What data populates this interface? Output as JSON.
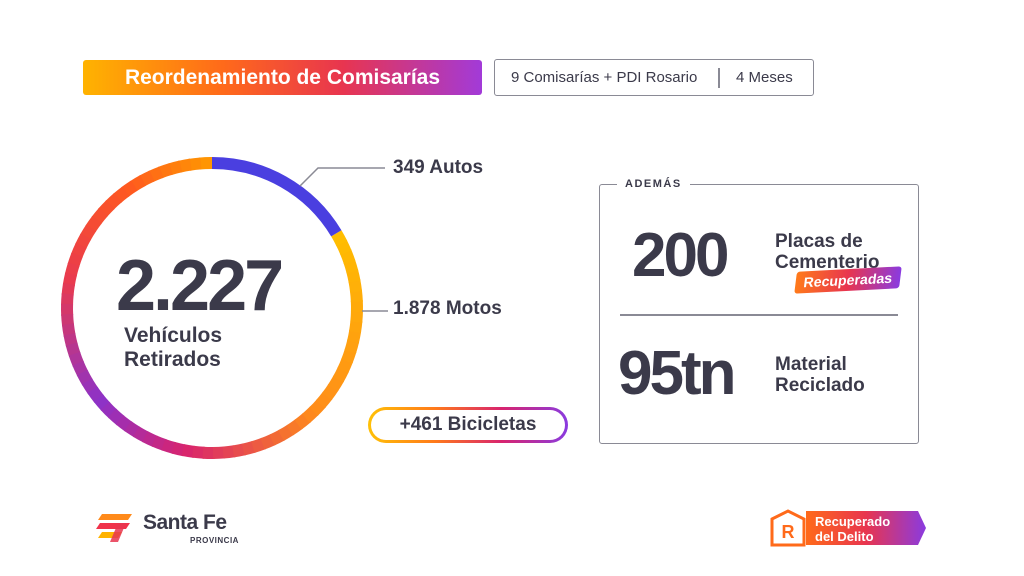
{
  "header": {
    "title": "Reordenamiento de Comisarías",
    "tags": [
      "9 Comisarías + PDI Rosario",
      "4 Meses"
    ]
  },
  "ring": {
    "total": "2.227",
    "label": [
      "Vehículos",
      "Retirados"
    ]
  },
  "callouts": [
    "349 Autos",
    "1.878 Motos",
    "+461 Bicicletas"
  ],
  "extra": {
    "heading": "ADEMÁS",
    "items": [
      {
        "value": "200",
        "label": [
          "Placas de",
          "Cementerio"
        ],
        "badge": "Recuperadas"
      },
      {
        "value": "95tn",
        "label": [
          "Material",
          "Reciclado"
        ]
      }
    ]
  },
  "footer": {
    "left": {
      "name": "Santa Fe",
      "sub": "PROVINCIA"
    },
    "right": [
      "Recuperado",
      "del Delito"
    ]
  }
}
